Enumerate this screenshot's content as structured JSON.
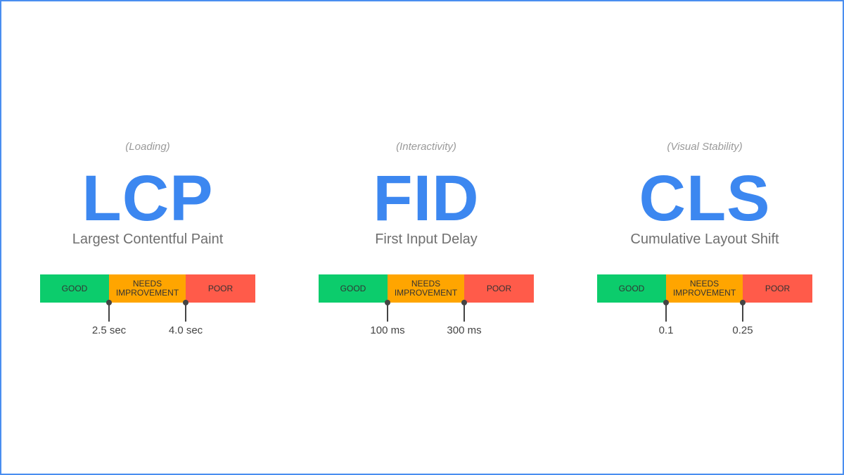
{
  "colors": {
    "accent": "#3c87f0",
    "good": "#0ccc6c",
    "needs_improvement": "#ffa500",
    "poor": "#ff5b4a"
  },
  "segments": {
    "good": "GOOD",
    "needs_improvement": "NEEDS IMPROVEMENT",
    "poor": "POOR"
  },
  "metrics": [
    {
      "category": "(Loading)",
      "abbr": "LCP",
      "name": "Largest Contentful Paint",
      "thresholds": [
        "2.5 sec",
        "4.0 sec"
      ]
    },
    {
      "category": "(Interactivity)",
      "abbr": "FID",
      "name": "First Input Delay",
      "thresholds": [
        "100 ms",
        "300 ms"
      ]
    },
    {
      "category": "(Visual Stability)",
      "abbr": "CLS",
      "name": "Cumulative Layout Shift",
      "thresholds": [
        "0.1",
        "0.25"
      ]
    }
  ]
}
